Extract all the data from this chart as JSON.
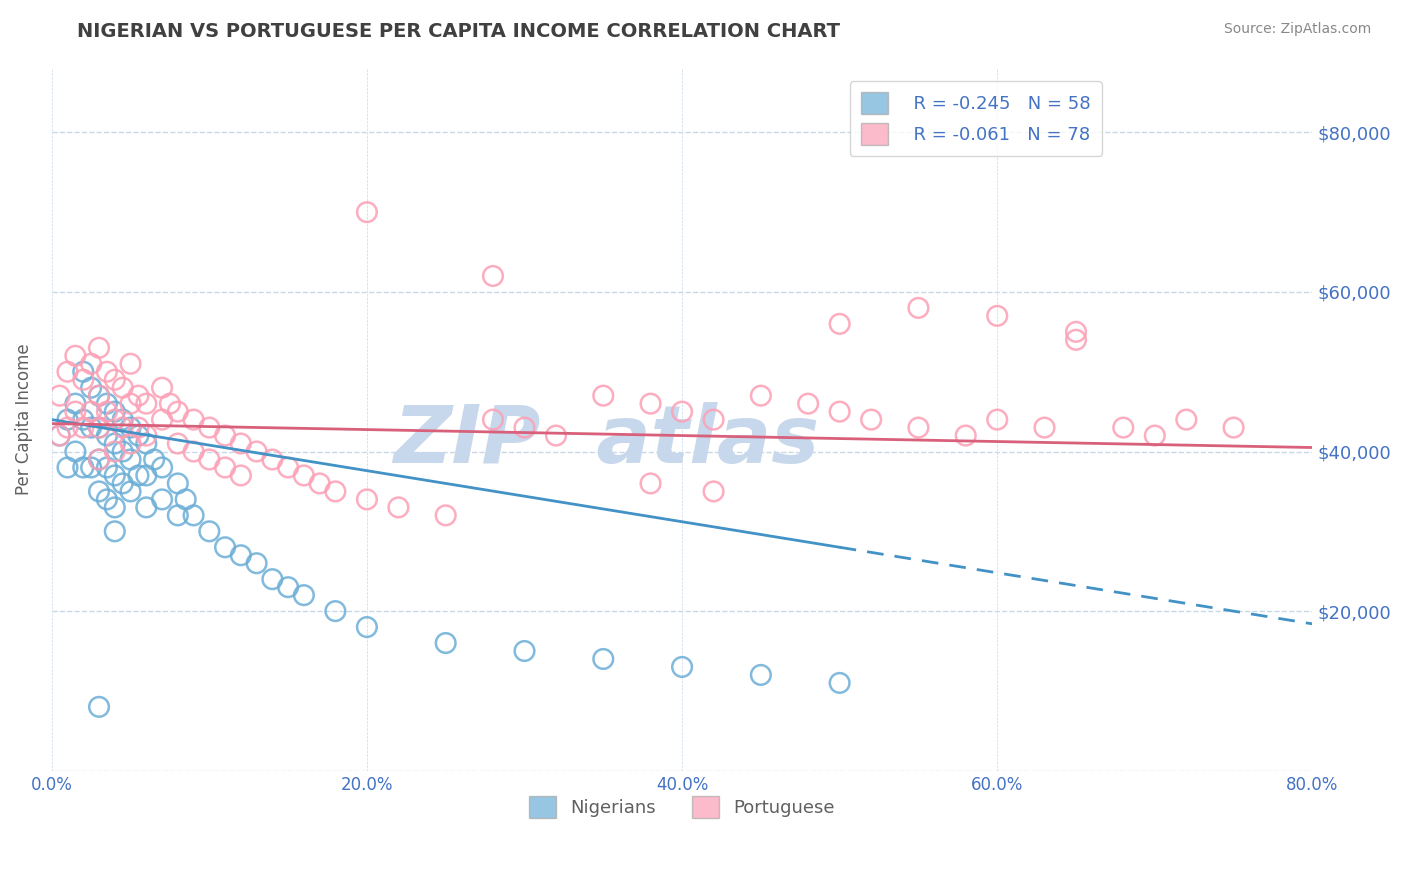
{
  "title": "NIGERIAN VS PORTUGUESE PER CAPITA INCOME CORRELATION CHART",
  "source_text": "Source: ZipAtlas.com",
  "ylabel": "Per Capita Income",
  "xlim": [
    0.0,
    0.8
  ],
  "ylim": [
    0,
    88000
  ],
  "yticks": [
    0,
    20000,
    40000,
    60000,
    80000
  ],
  "ytick_labels": [
    "",
    "$20,000",
    "$40,000",
    "$60,000",
    "$80,000"
  ],
  "xtick_labels": [
    "0.0%",
    "20.0%",
    "40.0%",
    "60.0%",
    "80.0%"
  ],
  "xticks": [
    0.0,
    0.2,
    0.4,
    0.6,
    0.8
  ],
  "legend_r1": "R = -0.245",
  "legend_n1": "N = 58",
  "legend_r2": "R = -0.061",
  "legend_n2": "N = 78",
  "nigerian_color": "#6baed6",
  "portuguese_color": "#fc9fb5",
  "blue_line_color": "#4292c6",
  "pink_line_color": "#d9607a",
  "watermark_color": "#c8d8ec",
  "background_color": "#ffffff",
  "grid_color": "#c8d8e8",
  "title_color": "#404040",
  "axis_label_color": "#606060",
  "tick_label_color": "#4472c4",
  "source_color": "#888888",
  "nigerian_x": [
    0.005,
    0.01,
    0.01,
    0.015,
    0.015,
    0.02,
    0.02,
    0.02,
    0.025,
    0.025,
    0.025,
    0.03,
    0.03,
    0.03,
    0.03,
    0.035,
    0.035,
    0.035,
    0.035,
    0.04,
    0.04,
    0.04,
    0.04,
    0.04,
    0.045,
    0.045,
    0.045,
    0.05,
    0.05,
    0.05,
    0.055,
    0.055,
    0.06,
    0.06,
    0.06,
    0.065,
    0.07,
    0.07,
    0.08,
    0.08,
    0.085,
    0.09,
    0.1,
    0.11,
    0.12,
    0.13,
    0.14,
    0.15,
    0.16,
    0.18,
    0.2,
    0.25,
    0.3,
    0.35,
    0.4,
    0.45,
    0.5,
    0.03
  ],
  "nigerian_y": [
    42000,
    44000,
    38000,
    46000,
    40000,
    50000,
    44000,
    38000,
    48000,
    43000,
    38000,
    47000,
    43000,
    39000,
    35000,
    46000,
    42000,
    38000,
    34000,
    45000,
    41000,
    37000,
    33000,
    30000,
    44000,
    40000,
    36000,
    43000,
    39000,
    35000,
    42000,
    37000,
    41000,
    37000,
    33000,
    39000,
    38000,
    34000,
    36000,
    32000,
    34000,
    32000,
    30000,
    28000,
    27000,
    26000,
    24000,
    23000,
    22000,
    20000,
    18000,
    16000,
    15000,
    14000,
    13000,
    12000,
    11000,
    8000
  ],
  "portuguese_x": [
    0.005,
    0.005,
    0.01,
    0.01,
    0.015,
    0.015,
    0.02,
    0.02,
    0.025,
    0.025,
    0.03,
    0.03,
    0.03,
    0.03,
    0.035,
    0.035,
    0.04,
    0.04,
    0.04,
    0.045,
    0.045,
    0.05,
    0.05,
    0.05,
    0.055,
    0.055,
    0.06,
    0.06,
    0.07,
    0.07,
    0.075,
    0.08,
    0.08,
    0.09,
    0.09,
    0.1,
    0.1,
    0.11,
    0.11,
    0.12,
    0.12,
    0.13,
    0.14,
    0.15,
    0.16,
    0.17,
    0.18,
    0.2,
    0.22,
    0.25,
    0.28,
    0.3,
    0.32,
    0.35,
    0.38,
    0.4,
    0.42,
    0.45,
    0.48,
    0.5,
    0.52,
    0.55,
    0.58,
    0.6,
    0.63,
    0.65,
    0.68,
    0.7,
    0.72,
    0.75,
    0.38,
    0.42,
    0.2,
    0.28,
    0.55,
    0.6,
    0.5,
    0.65
  ],
  "portuguese_y": [
    47000,
    42000,
    50000,
    43000,
    52000,
    45000,
    49000,
    43000,
    51000,
    45000,
    53000,
    47000,
    43000,
    39000,
    50000,
    45000,
    49000,
    44000,
    40000,
    48000,
    43000,
    51000,
    46000,
    41000,
    47000,
    43000,
    46000,
    42000,
    48000,
    44000,
    46000,
    45000,
    41000,
    44000,
    40000,
    43000,
    39000,
    42000,
    38000,
    41000,
    37000,
    40000,
    39000,
    38000,
    37000,
    36000,
    35000,
    34000,
    33000,
    32000,
    44000,
    43000,
    42000,
    47000,
    46000,
    45000,
    44000,
    47000,
    46000,
    45000,
    44000,
    43000,
    42000,
    44000,
    43000,
    55000,
    43000,
    42000,
    44000,
    43000,
    36000,
    35000,
    70000,
    62000,
    58000,
    57000,
    56000,
    54000
  ]
}
